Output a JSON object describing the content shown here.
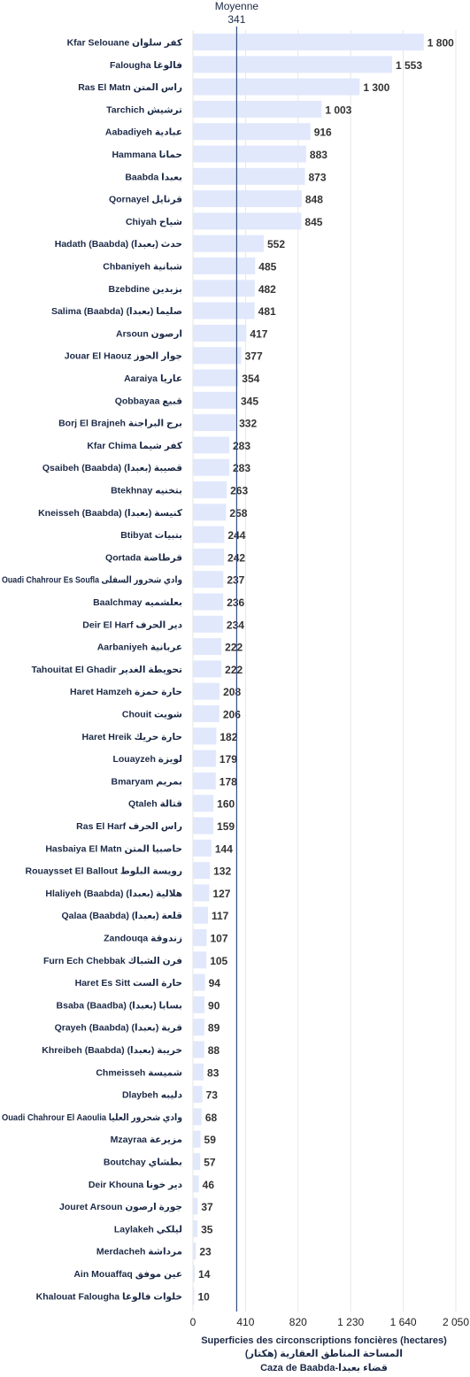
{
  "chart_data": {
    "type": "bar",
    "orientation": "horizontal",
    "categories": [
      "Kfar Selouane كفر سلوان",
      "Falougha فالوغا",
      "Ras El Matn راس المتن",
      "Tarchich ترشيش",
      "Aabadiyeh عبادية",
      "Hammana حمانا",
      "Baabda بعبدا",
      "Qornayel قرنايل",
      "Chiyah شياح",
      "Hadath (Baabda) حدث (بعبدا)",
      "Chbaniyeh شبانية",
      "Bzebdine بزبدين",
      "Salima (Baabda) صليما (بعبدا)",
      "Arsoun ارصون",
      "Jouar El Haouz جوار الحوز",
      "Aaraiya عاريا",
      "Qobbayaa قبيع",
      "Borj El Brajneh برج البراجنة",
      "Kfar Chima كفر شيما",
      "Qsaibeh (Baabda) قصيبة (بعبدا)",
      "Btekhnay بتخنيه",
      "Kneisseh (Baabda) كنيسة (بعبدا)",
      "Btibyat بتبيات",
      "Qortada قرطاضة",
      "Ouadi Chahrour Es Soufla وادي شحرور السفلى",
      "Baalchmay بعلشميه",
      "Deir El Harf دير الحرف",
      "Aarbaniyeh عربانية",
      "Tahouitat El Ghadir تحويطة الغدير",
      "Haret Hamzeh حارة حمزة",
      "Chouit شويت",
      "Haret Hreik حارة حريك",
      "Louayzeh لويزة",
      "Bmaryam بمريم",
      "Qtaleh قتالة",
      "Ras El Harf راس الحرف",
      "Hasbaiya El Matn حاصبيا المتن",
      "Rouaysset El Ballout رويسة البلوط",
      "Hlaliyeh (Baabda) هلالية (بعبدا)",
      "Qalaa (Baabda) قلعة (بعبدا)",
      "Zandouqa زندوقة",
      "Furn Ech Chebbak فرن الشباك",
      "Haret Es Sitt حارة الست",
      "Bsaba (Baadba) بسابا (بعبدا)",
      "Qrayeh (Baabda) قرية (بعبدا)",
      "Khreibeh (Baabda) خريبة (بعبدا)",
      "Chmeisseh شميسة",
      "Dlaybeh دليبه",
      "Ouadi Chahrour El Aaoulia وادي شحرور العليا",
      "Mzayraa مزيرعة",
      "Boutchay بطشاي",
      "Deir Khouna دير خونا",
      "Jouret Arsoun جورة ارصون",
      "Laylakeh ليلكي",
      "Merdacheh مرداشة",
      "Ain Mouaffaq عين موفق",
      "Khalouat Falougha خلوات فالوغا"
    ],
    "values": [
      1800,
      1553,
      1300,
      1003,
      916,
      883,
      873,
      848,
      845,
      552,
      485,
      482,
      481,
      417,
      377,
      354,
      345,
      332,
      283,
      283,
      263,
      258,
      244,
      242,
      237,
      236,
      234,
      222,
      222,
      208,
      206,
      182,
      179,
      178,
      160,
      159,
      144,
      132,
      127,
      117,
      107,
      105,
      94,
      90,
      89,
      88,
      83,
      73,
      68,
      59,
      57,
      46,
      37,
      35,
      23,
      14,
      10
    ],
    "value_labels": [
      "1 800",
      "1 553",
      "1 300",
      "1 003",
      "916",
      "883",
      "873",
      "848",
      "845",
      "552",
      "485",
      "482",
      "481",
      "417",
      "377",
      "354",
      "345",
      "332",
      "283",
      "283",
      "263",
      "258",
      "244",
      "242",
      "237",
      "236",
      "234",
      "222",
      "222",
      "208",
      "206",
      "182",
      "179",
      "178",
      "160",
      "159",
      "144",
      "132",
      "127",
      "117",
      "107",
      "105",
      "94",
      "90",
      "89",
      "88",
      "83",
      "73",
      "68",
      "59",
      "57",
      "46",
      "37",
      "35",
      "23",
      "14",
      "10"
    ],
    "xlim": [
      0,
      2050
    ],
    "xticks": [
      0,
      410,
      820,
      1230,
      1640,
      2050
    ],
    "xtick_labels": [
      "0",
      "410",
      "820",
      "1 230",
      "1 640",
      "2 050"
    ],
    "xlabel": [
      "Superficies des circonscriptions foncières (hectares)",
      "المساحة المناطق العقارية (هكتار)",
      "Caza de Baabda-قضاء بعبدا"
    ],
    "reference_line": {
      "label": "Moyenne",
      "value": 341,
      "value_label": "341"
    },
    "grid": true,
    "colors": {
      "bar": "#e1e8fc",
      "mean_line": "#34507e",
      "grid": "#e6e6e6"
    }
  }
}
